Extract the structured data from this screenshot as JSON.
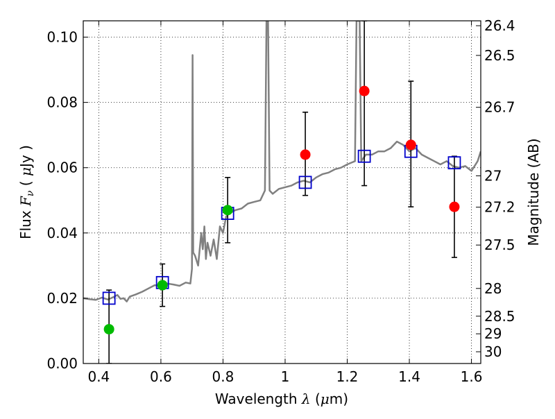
{
  "chart_data": {
    "type": "scatter",
    "title": "",
    "xlabel_prefix": "Wavelength  ",
    "xlabel_symbol": "λ",
    "xlabel_unit_open": " (",
    "xlabel_unit_mu": "μ",
    "xlabel_unit_close": "m)",
    "ylabel_prefix": "Flux  ",
    "ylabel_symbol": "F",
    "ylabel_subscript": "ν",
    "ylabel_unit_open": "  ( ",
    "ylabel_unit_mu": "μ",
    "ylabel_unit_close": "Jy )",
    "y2label": "Magnitude (AB)",
    "xlim": [
      0.35,
      1.63
    ],
    "ylim": [
      0.0,
      0.105
    ],
    "grid": true,
    "x_ticks": [
      {
        "value": 0.4,
        "label": "0.4"
      },
      {
        "value": 0.6,
        "label": "0.6"
      },
      {
        "value": 0.8,
        "label": "0.8"
      },
      {
        "value": 1.0,
        "label": "1"
      },
      {
        "value": 1.2,
        "label": "1.2"
      },
      {
        "value": 1.4,
        "label": "1.4"
      },
      {
        "value": 1.6,
        "label": "1.6"
      }
    ],
    "y_ticks": [
      {
        "value": 0.0,
        "label": "0.00"
      },
      {
        "value": 0.02,
        "label": "0.02"
      },
      {
        "value": 0.04,
        "label": "0.04"
      },
      {
        "value": 0.06,
        "label": "0.06"
      },
      {
        "value": 0.08,
        "label": "0.08"
      },
      {
        "value": 0.1,
        "label": "0.10"
      }
    ],
    "y2_ticks": [
      {
        "label": "26.4",
        "flux": 0.1035
      },
      {
        "label": "26.5",
        "flux": 0.0944
      },
      {
        "label": "26.7",
        "flux": 0.0785
      },
      {
        "label": "27",
        "flux": 0.0575
      },
      {
        "label": "27.2",
        "flux": 0.0479
      },
      {
        "label": "27.5",
        "flux": 0.0363
      },
      {
        "label": "28",
        "flux": 0.023
      },
      {
        "label": "28.5",
        "flux": 0.0145
      },
      {
        "label": "29",
        "flux": 0.0091
      },
      {
        "label": "30",
        "flux": 0.0036
      }
    ],
    "series": [
      {
        "kind": "line",
        "color": "#808080",
        "points": [
          [
            0.35,
            0.02
          ],
          [
            0.37,
            0.0197
          ],
          [
            0.39,
            0.0195
          ],
          [
            0.41,
            0.0202
          ],
          [
            0.43,
            0.0196
          ],
          [
            0.45,
            0.0205
          ],
          [
            0.46,
            0.021
          ],
          [
            0.47,
            0.0198
          ],
          [
            0.48,
            0.02
          ],
          [
            0.49,
            0.019
          ],
          [
            0.5,
            0.0205
          ],
          [
            0.52,
            0.0212
          ],
          [
            0.54,
            0.022
          ],
          [
            0.56,
            0.023
          ],
          [
            0.58,
            0.024
          ],
          [
            0.6,
            0.0238
          ],
          [
            0.62,
            0.0245
          ],
          [
            0.64,
            0.0242
          ],
          [
            0.66,
            0.0238
          ],
          [
            0.68,
            0.0248
          ],
          [
            0.695,
            0.0245
          ],
          [
            0.7,
            0.029
          ],
          [
            0.702,
            0.0945
          ],
          [
            0.704,
            0.034
          ],
          [
            0.71,
            0.033
          ],
          [
            0.72,
            0.03
          ],
          [
            0.73,
            0.04
          ],
          [
            0.735,
            0.035
          ],
          [
            0.74,
            0.042
          ],
          [
            0.745,
            0.032
          ],
          [
            0.75,
            0.037
          ],
          [
            0.76,
            0.033
          ],
          [
            0.77,
            0.038
          ],
          [
            0.78,
            0.032
          ],
          [
            0.79,
            0.042
          ],
          [
            0.8,
            0.04
          ],
          [
            0.81,
            0.045
          ],
          [
            0.82,
            0.046
          ],
          [
            0.84,
            0.047
          ],
          [
            0.86,
            0.0475
          ],
          [
            0.88,
            0.049
          ],
          [
            0.9,
            0.0495
          ],
          [
            0.92,
            0.05
          ],
          [
            0.935,
            0.053
          ],
          [
            0.94,
            0.105
          ],
          [
            0.945,
            0.105
          ],
          [
            0.95,
            0.053
          ],
          [
            0.96,
            0.052
          ],
          [
            0.98,
            0.0535
          ],
          [
            1.0,
            0.054
          ],
          [
            1.02,
            0.0545
          ],
          [
            1.04,
            0.0555
          ],
          [
            1.06,
            0.056
          ],
          [
            1.08,
            0.0555
          ],
          [
            1.1,
            0.057
          ],
          [
            1.12,
            0.058
          ],
          [
            1.14,
            0.0585
          ],
          [
            1.16,
            0.0595
          ],
          [
            1.18,
            0.06
          ],
          [
            1.2,
            0.061
          ],
          [
            1.225,
            0.062
          ],
          [
            1.23,
            0.105
          ],
          [
            1.24,
            0.105
          ],
          [
            1.245,
            0.062
          ],
          [
            1.26,
            0.064
          ],
          [
            1.28,
            0.064
          ],
          [
            1.3,
            0.065
          ],
          [
            1.32,
            0.065
          ],
          [
            1.34,
            0.066
          ],
          [
            1.36,
            0.068
          ],
          [
            1.38,
            0.067
          ],
          [
            1.4,
            0.065
          ],
          [
            1.42,
            0.066
          ],
          [
            1.44,
            0.064
          ],
          [
            1.46,
            0.063
          ],
          [
            1.48,
            0.062
          ],
          [
            1.5,
            0.061
          ],
          [
            1.52,
            0.062
          ],
          [
            1.54,
            0.0605
          ],
          [
            1.56,
            0.06
          ],
          [
            1.58,
            0.0605
          ],
          [
            1.6,
            0.059
          ],
          [
            1.62,
            0.062
          ],
          [
            1.63,
            0.065
          ]
        ]
      },
      {
        "kind": "errorbar",
        "color": "#000000",
        "points": [
          {
            "x": 0.433,
            "low": 0.0,
            "high": 0.0225
          },
          {
            "x": 0.605,
            "low": 0.0175,
            "high": 0.0305
          },
          {
            "x": 0.815,
            "low": 0.037,
            "high": 0.057
          },
          {
            "x": 1.065,
            "low": 0.0515,
            "high": 0.077
          },
          {
            "x": 1.255,
            "low": 0.0545,
            "high": 0.105
          },
          {
            "x": 1.405,
            "low": 0.048,
            "high": 0.0865
          },
          {
            "x": 1.545,
            "low": 0.0325,
            "high": 0.0635
          }
        ]
      },
      {
        "kind": "markers",
        "marker": "square",
        "color": "#0000cc",
        "points": [
          [
            0.433,
            0.02
          ],
          [
            0.605,
            0.0248
          ],
          [
            0.815,
            0.046
          ],
          [
            1.065,
            0.0555
          ],
          [
            1.255,
            0.0635
          ],
          [
            1.405,
            0.065
          ],
          [
            1.545,
            0.0615
          ]
        ]
      },
      {
        "kind": "markers",
        "marker": "circle",
        "color": "#00bb00",
        "points": [
          [
            0.433,
            0.0105
          ],
          [
            0.605,
            0.024
          ],
          [
            0.815,
            0.047
          ]
        ]
      },
      {
        "kind": "markers",
        "marker": "circle",
        "color": "#ff0000",
        "points": [
          [
            1.065,
            0.064
          ],
          [
            1.255,
            0.0835
          ],
          [
            1.405,
            0.067
          ],
          [
            1.545,
            0.048
          ]
        ]
      }
    ]
  }
}
